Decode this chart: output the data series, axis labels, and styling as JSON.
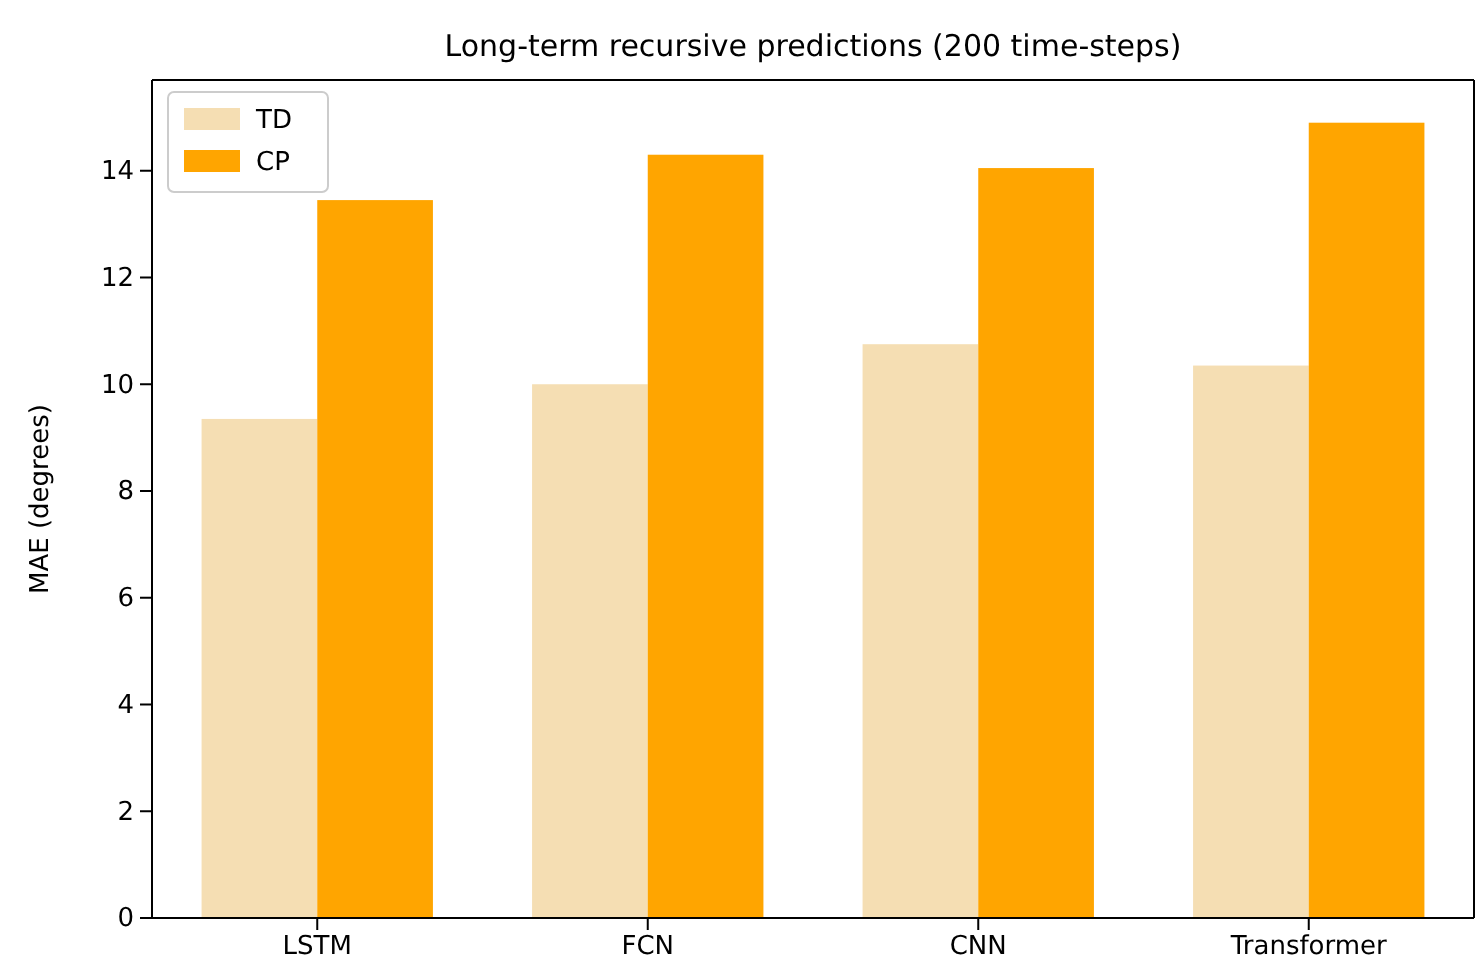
{
  "chart_data": {
    "type": "bar",
    "title": "Long-term recursive predictions (200 time-steps)",
    "ylabel": "MAE (degrees)",
    "categories": [
      "LSTM",
      "FCN",
      "CNN",
      "Transformer"
    ],
    "series": [
      {
        "name": "TD",
        "color": "#f5deb3",
        "values": [
          9.35,
          10.0,
          10.75,
          10.35
        ]
      },
      {
        "name": "CP",
        "color": "#ffa500",
        "values": [
          13.45,
          14.3,
          14.05,
          14.9
        ]
      }
    ],
    "ylim": [
      0,
      15.7
    ],
    "yticks": [
      0,
      2,
      4,
      6,
      8,
      10,
      12,
      14
    ],
    "legend": "top left"
  }
}
